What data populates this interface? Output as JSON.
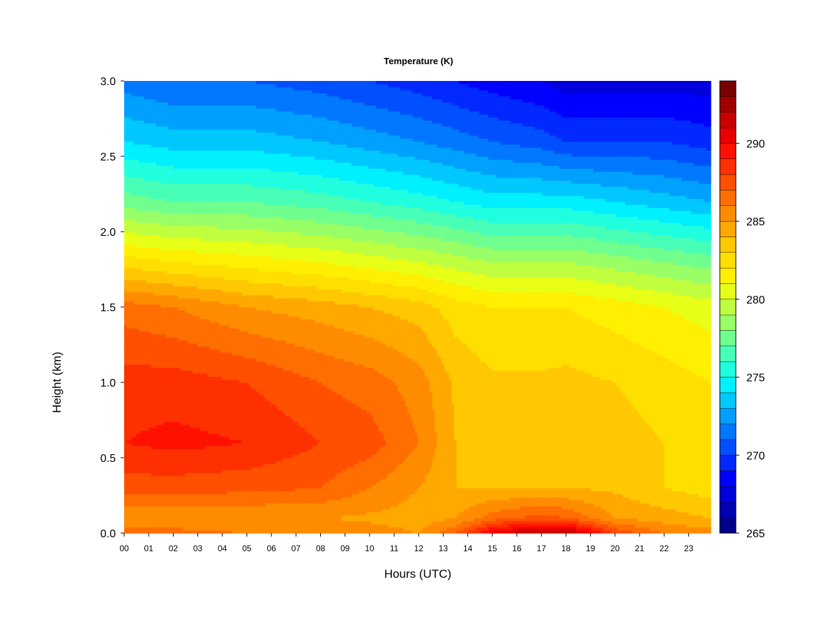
{
  "chart_data": {
    "type": "heatmap",
    "title": "Temperature (K)",
    "xlabel": "Hours (UTC)",
    "ylabel": "Height (km)",
    "x_ticks": [
      "00",
      "01",
      "02",
      "03",
      "04",
      "05",
      "06",
      "07",
      "08",
      "09",
      "10",
      "11",
      "12",
      "13",
      "14",
      "15",
      "16",
      "17",
      "18",
      "19",
      "20",
      "21",
      "22",
      "23"
    ],
    "x_range": [
      0,
      23.9
    ],
    "y_ticks": [
      "0.0",
      "0.5",
      "1.0",
      "1.5",
      "2.0",
      "2.5",
      "3.0"
    ],
    "y_range": [
      0.0,
      3.0
    ],
    "colorbar": {
      "ticks": [
        "265",
        "270",
        "275",
        "280",
        "285",
        "290"
      ],
      "range": [
        265,
        294
      ],
      "levels": 29,
      "colors": [
        "#00008B",
        "#0000B4",
        "#0000DC",
        "#0000FF",
        "#0028FF",
        "#0050FF",
        "#0078FF",
        "#00A0FF",
        "#00C8FF",
        "#00F0FF",
        "#20FFDF",
        "#48FFB7",
        "#70FF8F",
        "#98FF67",
        "#C0FF3F",
        "#E8FF17",
        "#FFEF00",
        "#FFDF00",
        "#FFC800",
        "#FFA800",
        "#FF8C00",
        "#FF6E00",
        "#FF5000",
        "#FF3000",
        "#FF1000",
        "#E80000",
        "#C80000",
        "#A00000",
        "#780000"
      ]
    },
    "profiles": [
      {
        "hour": 0,
        "temps": [
          [
            0.0,
            286.5
          ],
          [
            0.1,
            285.0
          ],
          [
            0.3,
            287.5
          ],
          [
            0.6,
            289.0
          ],
          [
            1.0,
            288.5
          ],
          [
            1.5,
            286.5
          ],
          [
            1.8,
            282.5
          ],
          [
            2.2,
            277.5
          ],
          [
            2.6,
            274.0
          ],
          [
            3.0,
            271.5
          ]
        ]
      },
      {
        "hour": 2,
        "temps": [
          [
            0.0,
            286.5
          ],
          [
            0.1,
            285.0
          ],
          [
            0.3,
            287.5
          ],
          [
            0.6,
            289.3
          ],
          [
            1.0,
            288.5
          ],
          [
            1.5,
            286.0
          ],
          [
            1.8,
            282.0
          ],
          [
            2.2,
            277.0
          ],
          [
            2.6,
            273.5
          ],
          [
            3.0,
            271.0
          ]
        ]
      },
      {
        "hour": 5,
        "temps": [
          [
            0.0,
            286.0
          ],
          [
            0.1,
            285.0
          ],
          [
            0.3,
            287.3
          ],
          [
            0.6,
            289.0
          ],
          [
            1.0,
            288.0
          ],
          [
            1.5,
            285.0
          ],
          [
            1.8,
            281.5
          ],
          [
            2.2,
            277.0
          ],
          [
            2.6,
            273.5
          ],
          [
            3.0,
            271.0
          ]
        ]
      },
      {
        "hour": 8,
        "temps": [
          [
            0.0,
            286.0
          ],
          [
            0.1,
            285.0
          ],
          [
            0.3,
            287.0
          ],
          [
            0.6,
            288.0
          ],
          [
            1.0,
            287.0
          ],
          [
            1.5,
            284.5
          ],
          [
            1.8,
            281.0
          ],
          [
            2.2,
            276.5
          ],
          [
            2.6,
            273.0
          ],
          [
            3.0,
            270.5
          ]
        ]
      },
      {
        "hour": 10,
        "temps": [
          [
            0.0,
            285.5
          ],
          [
            0.1,
            284.8
          ],
          [
            0.3,
            286.0
          ],
          [
            0.6,
            287.5
          ],
          [
            1.0,
            286.5
          ],
          [
            1.5,
            284.0
          ],
          [
            1.8,
            280.5
          ],
          [
            2.2,
            276.0
          ],
          [
            2.6,
            272.5
          ],
          [
            3.0,
            270.0
          ]
        ]
      },
      {
        "hour": 12,
        "temps": [
          [
            0.0,
            285.0
          ],
          [
            0.1,
            284.5
          ],
          [
            0.3,
            285.0
          ],
          [
            0.6,
            286.0
          ],
          [
            1.0,
            285.5
          ],
          [
            1.5,
            283.5
          ],
          [
            1.8,
            280.0
          ],
          [
            2.2,
            275.5
          ],
          [
            2.6,
            272.0
          ],
          [
            3.0,
            269.5
          ]
        ]
      },
      {
        "hour": 13.5,
        "temps": [
          [
            0.0,
            287.0
          ],
          [
            0.1,
            285.0
          ],
          [
            0.3,
            284.0
          ],
          [
            0.6,
            284.0
          ],
          [
            1.0,
            283.8
          ],
          [
            1.5,
            282.5
          ],
          [
            1.8,
            279.5
          ],
          [
            2.2,
            275.0
          ],
          [
            2.6,
            271.5
          ],
          [
            3.0,
            269.0
          ]
        ]
      },
      {
        "hour": 15,
        "temps": [
          [
            0.0,
            290.5
          ],
          [
            0.1,
            286.5
          ],
          [
            0.3,
            284.0
          ],
          [
            0.6,
            283.5
          ],
          [
            1.0,
            283.2
          ],
          [
            1.5,
            282.0
          ],
          [
            1.8,
            279.0
          ],
          [
            2.2,
            274.5
          ],
          [
            2.6,
            271.0
          ],
          [
            3.0,
            268.5
          ]
        ]
      },
      {
        "hour": 17,
        "temps": [
          [
            0.0,
            292.5
          ],
          [
            0.1,
            287.5
          ],
          [
            0.3,
            284.0
          ],
          [
            0.6,
            283.5
          ],
          [
            1.0,
            283.2
          ],
          [
            1.5,
            282.0
          ],
          [
            1.8,
            279.0
          ],
          [
            2.2,
            274.5
          ],
          [
            2.6,
            270.5
          ],
          [
            3.0,
            268.0
          ]
        ]
      },
      {
        "hour": 18,
        "temps": [
          [
            0.0,
            292.5
          ],
          [
            0.1,
            287.0
          ],
          [
            0.3,
            284.0
          ],
          [
            0.6,
            283.8
          ],
          [
            1.0,
            283.3
          ],
          [
            1.5,
            282.0
          ],
          [
            1.8,
            279.0
          ],
          [
            2.2,
            274.5
          ],
          [
            2.6,
            270.0
          ],
          [
            3.0,
            267.5
          ]
        ]
      },
      {
        "hour": 20,
        "temps": [
          [
            0.0,
            288.0
          ],
          [
            0.1,
            285.0
          ],
          [
            0.3,
            283.8
          ],
          [
            0.6,
            283.5
          ],
          [
            1.0,
            283.0
          ],
          [
            1.5,
            281.5
          ],
          [
            1.8,
            278.5
          ],
          [
            2.2,
            274.0
          ],
          [
            2.6,
            270.0
          ],
          [
            3.0,
            267.5
          ]
        ]
      },
      {
        "hour": 22,
        "temps": [
          [
            0.0,
            286.0
          ],
          [
            0.1,
            284.5
          ],
          [
            0.3,
            283.0
          ],
          [
            0.6,
            283.0
          ],
          [
            1.0,
            282.5
          ],
          [
            1.5,
            281.0
          ],
          [
            1.8,
            278.0
          ],
          [
            2.2,
            273.5
          ],
          [
            2.6,
            270.0
          ],
          [
            3.0,
            267.5
          ]
        ]
      },
      {
        "hour": 23.9,
        "temps": [
          [
            0.0,
            285.5
          ],
          [
            0.1,
            284.0
          ],
          [
            0.3,
            282.5
          ],
          [
            0.6,
            282.5
          ],
          [
            1.0,
            282.0
          ],
          [
            1.5,
            280.5
          ],
          [
            1.8,
            277.5
          ],
          [
            2.2,
            273.0
          ],
          [
            2.6,
            269.5
          ],
          [
            3.0,
            267.5
          ]
        ]
      }
    ]
  }
}
